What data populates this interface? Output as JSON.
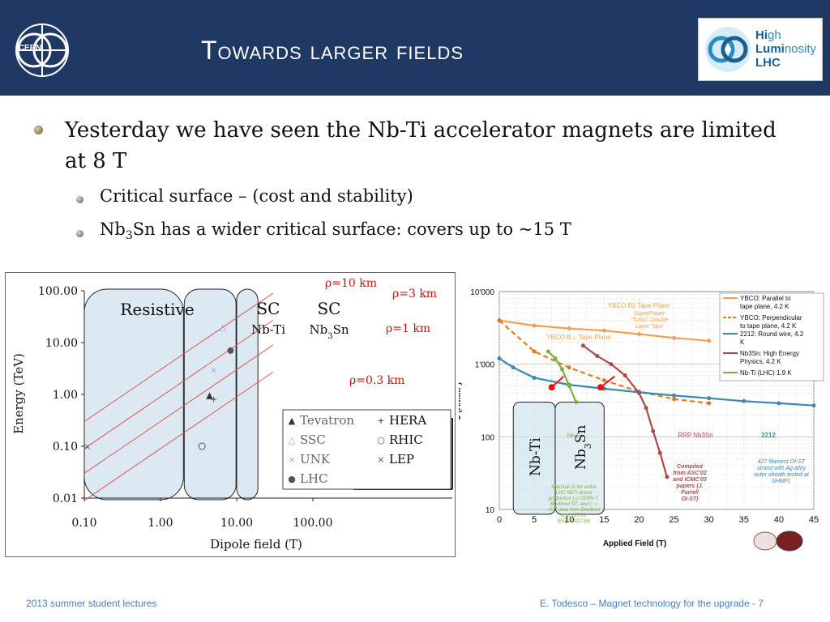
{
  "header": {
    "title": "Towards larger fields",
    "cern_logo_text": "CERN",
    "hl_logo": {
      "line1_a": "Hi",
      "line1_b": "gh",
      "line2_a": "Lumi",
      "line2_b": "nosity",
      "line3": "LHC"
    }
  },
  "bullets": {
    "main": "Yesterday we have seen the Nb-Ti accelerator magnets are limited at 8 T",
    "sub1": "Critical surface – (cost and stability)",
    "sub2_a": "Nb",
    "sub2_sub": "3",
    "sub2_b": "Sn has a wider critical surface: covers up to ~15 T"
  },
  "chart_data": [
    {
      "type": "scatter",
      "xlabel": "Dipole field (T)",
      "ylabel": "Energy (TeV)",
      "x_scale": "log",
      "y_scale": "log",
      "xlim": [
        0.1,
        100
      ],
      "ylim": [
        0.01,
        100
      ],
      "x_ticks": [
        "0.10",
        "1.00",
        "10.00",
        "100.00"
      ],
      "y_ticks": [
        "0.01",
        "0.10",
        "1.00",
        "10.00",
        "100.00"
      ],
      "regions": [
        {
          "label": "Resistive",
          "x_range": [
            0.1,
            2
          ]
        },
        {
          "label": "SC",
          "sublabel": "Nb-Ti",
          "x_range": [
            2,
            10
          ]
        },
        {
          "label": "SC",
          "sublabel_a": "Nb",
          "sublabel_sub": "3",
          "sublabel_b": "Sn",
          "x_range": [
            10,
            20
          ]
        }
      ],
      "radius_lines": [
        {
          "label": "ρ=10 km",
          "rho_km": 10
        },
        {
          "label": "ρ=3 km",
          "rho_km": 3
        },
        {
          "label": "ρ=1 km",
          "rho_km": 1
        },
        {
          "label": "ρ=0.3 km",
          "rho_km": 0.3
        }
      ],
      "series": [
        {
          "name": "Tevatron",
          "marker": "▲",
          "color": "#333333",
          "x": 4.4,
          "y": 0.98
        },
        {
          "name": "SSC",
          "marker": "△",
          "color": "#9aa6e8",
          "x": 6.6,
          "y": 20
        },
        {
          "name": "UNK",
          "marker": "×",
          "color": "#9aa6e8",
          "x": 5.0,
          "y": 3.0
        },
        {
          "name": "LHC",
          "marker": "●",
          "color": "#555555",
          "x": 8.33,
          "y": 7.0
        },
        {
          "name": "HERA",
          "marker": "+",
          "color": "#333333",
          "x": 5.0,
          "y": 0.82
        },
        {
          "name": "RHIC",
          "marker": "○",
          "color": "#555555",
          "x": 3.5,
          "y": 0.1
        },
        {
          "name": "LEP",
          "marker": "×",
          "color": "#555555",
          "x": 0.11,
          "y": 0.1
        }
      ]
    },
    {
      "type": "line",
      "xlabel": "Applied Field (T)",
      "ylabel": "J (A/mm²)",
      "y_scale": "log",
      "xlim": [
        0,
        45
      ],
      "ylim": [
        10,
        10000
      ],
      "x_ticks": [
        "0",
        "5",
        "10",
        "15",
        "20",
        "25",
        "30",
        "35",
        "40",
        "45"
      ],
      "y_ticks": [
        "10",
        "100",
        "1'000",
        "10'000"
      ],
      "series": [
        {
          "name": "YBCO: Parallel to tape plane, 4.2 K",
          "color": "#f0a050",
          "x": [
            0,
            5,
            10,
            15,
            20,
            25,
            30
          ],
          "y": [
            4000,
            3400,
            3100,
            2900,
            2600,
            2300,
            2100
          ]
        },
        {
          "name": "YBCO: Perpendicular to tape plane, 4.2 K",
          "color": "#e07a20",
          "x": [
            0,
            5,
            10,
            15,
            20,
            25,
            30
          ],
          "y": [
            4000,
            1500,
            900,
            600,
            420,
            330,
            290
          ]
        },
        {
          "name": "2212: Round wire, 4.2 K",
          "color": "#3a8ab0",
          "x": [
            0,
            2,
            5,
            10,
            15,
            20,
            25,
            30,
            35,
            40,
            45
          ],
          "y": [
            1200,
            900,
            650,
            520,
            460,
            410,
            370,
            340,
            310,
            290,
            270
          ]
        },
        {
          "name": "Nb3Sn: High Energy Physics, 4.2 K",
          "color": "#b04848",
          "x": [
            12,
            14,
            16,
            18,
            20,
            21,
            22,
            23,
            24
          ],
          "y": [
            1800,
            1300,
            1000,
            700,
            400,
            250,
            120,
            60,
            28
          ]
        },
        {
          "name": "Nb-Ti (LHC) 1.9 K",
          "color": "#7ab040",
          "x": [
            7,
            8,
            9,
            10,
            11
          ],
          "y": [
            1500,
            1200,
            850,
            500,
            300
          ]
        }
      ],
      "regions": [
        {
          "label": "Nb-Ti",
          "x_range": [
            2,
            8
          ]
        },
        {
          "label_a": "Nb",
          "label_sub": "3",
          "label_b": "Sn",
          "x_range": [
            8,
            15
          ]
        }
      ],
      "annotations": [
        "YBCO B|| Tape Plane",
        "SuperPower \"Turbo\" Double Layer Tape",
        "YBCO B⊥ Tape Plane",
        "RRP Nb3Sn",
        "2212",
        "Compiled from ASC'02 and ICMC'03 papers (J. Parrell OI-ST)",
        "427 filament OI-ST strand with Ag alloy outer sheath tested at NHMFL",
        "Nb-Ti",
        "Maximal Jc for entire LHC NbTi strand production (–) CERN-T. Boutboul '07, and (- -) <5 T data from Boutboul et al. MT-19, IEEE-TASC'06)"
      ]
    }
  ],
  "footer": {
    "left": "2013 summer student lectures",
    "right": "E. Todesco – Magnet technology for the upgrade - 7"
  }
}
